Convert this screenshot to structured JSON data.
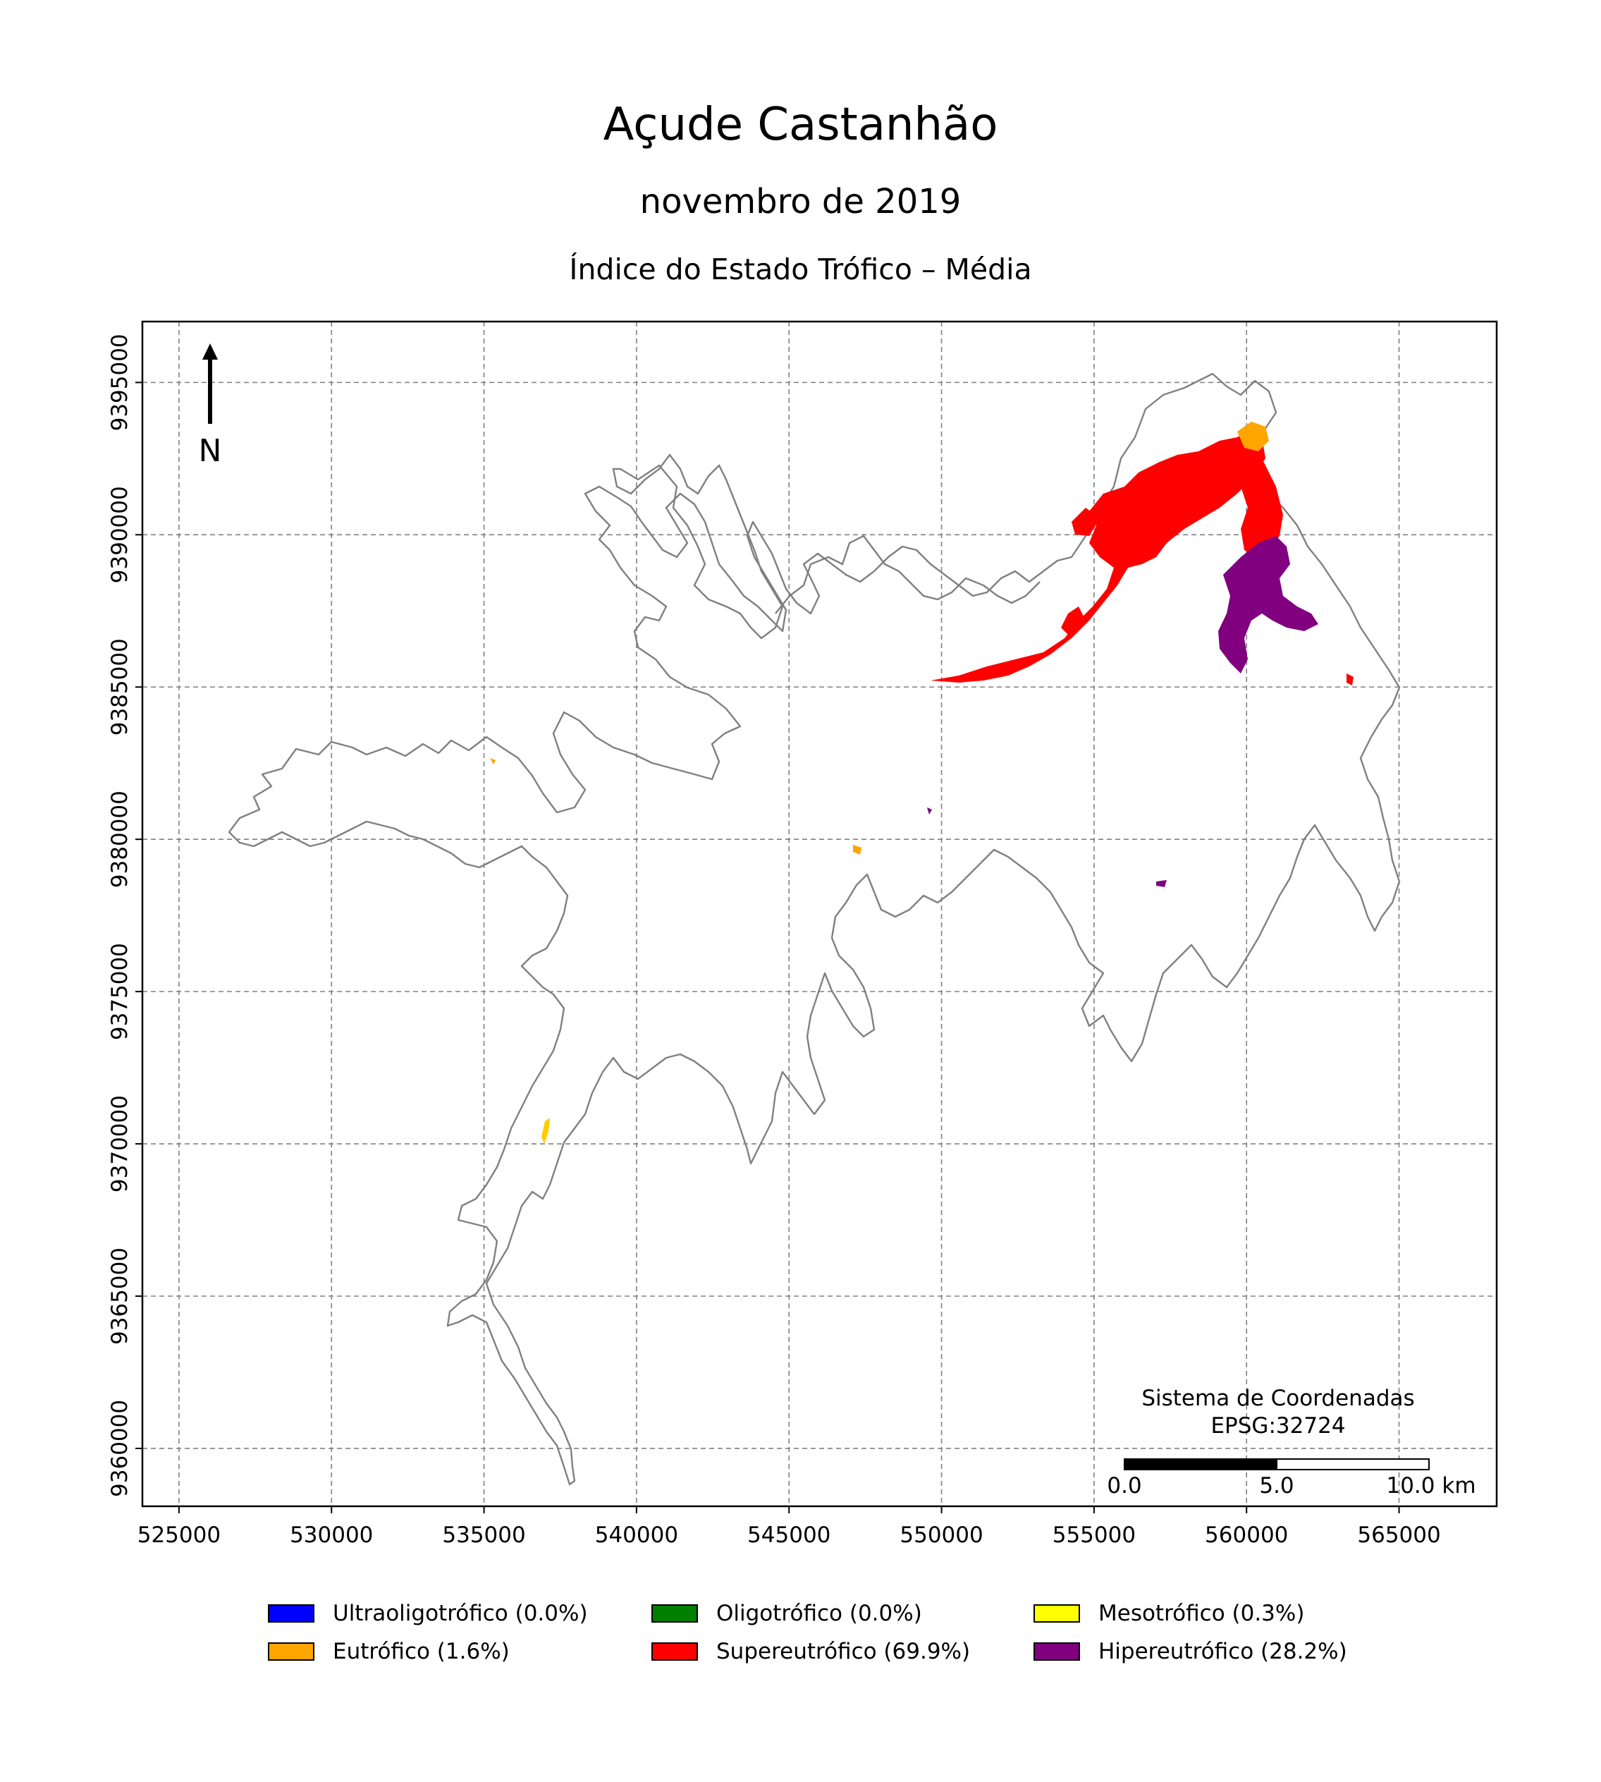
{
  "title": "Açude Castanhão",
  "subtitle": "novembro de 2019",
  "index_title": "Índice do Estado Trófico – Média",
  "north_label": "N",
  "crs": {
    "line1": "Sistema de Coordenadas",
    "line2": "EPSG:32724"
  },
  "scalebar": {
    "labels": [
      "0.0",
      "5.0",
      "10.0 km"
    ]
  },
  "axes": {
    "x_ticks": [
      "525000",
      "530000",
      "535000",
      "540000",
      "545000",
      "550000",
      "555000",
      "560000",
      "565000"
    ],
    "y_ticks": [
      "9395000",
      "9390000",
      "9385000",
      "9380000",
      "9375000",
      "9370000",
      "9365000",
      "9360000"
    ],
    "xlim": [
      523800,
      568200
    ],
    "ylim": [
      9358100,
      9397000
    ],
    "grid": true
  },
  "legend": [
    {
      "label": "Ultraoligotrófico (0.0%)",
      "color": "#0000ff"
    },
    {
      "label": "Oligotrófico (0.0%)",
      "color": "#008000"
    },
    {
      "label": "Mesotrófico (0.3%)",
      "color": "#ffff00"
    },
    {
      "label": "Eutrófico (1.6%)",
      "color": "#ffa500"
    },
    {
      "label": "Supereutrófico (69.9%)",
      "color": "#ff0000"
    },
    {
      "label": "Hipereutrófico (28.2%)",
      "color": "#800080"
    }
  ]
}
